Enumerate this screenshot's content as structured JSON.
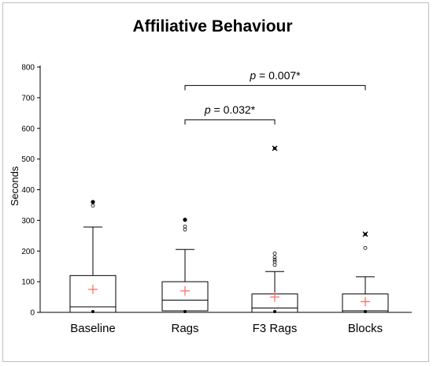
{
  "chart_data": {
    "type": "box",
    "title": "Affiliative Behaviour",
    "xlabel": "",
    "ylabel": "Seconds",
    "ylim": [
      0,
      800
    ],
    "yticks": [
      0,
      100,
      200,
      300,
      400,
      500,
      600,
      700,
      800
    ],
    "categories": [
      "Baseline",
      "Rags",
      "F3 Rags",
      "Blocks"
    ],
    "boxes": [
      {
        "min": 0,
        "q1": 0,
        "median": 18,
        "q3": 120,
        "max": 278,
        "mean": 75,
        "outliers": [
          348
        ],
        "extremes": [
          360
        ]
      },
      {
        "min": 0,
        "q1": 5,
        "median": 40,
        "q3": 100,
        "max": 205,
        "mean": 70,
        "outliers": [
          270,
          280
        ],
        "extremes": [
          302
        ]
      },
      {
        "min": 0,
        "q1": 0,
        "median": 14,
        "q3": 60,
        "max": 133,
        "mean": 50,
        "outliers": [
          155,
          165,
          172,
          180,
          192
        ],
        "extremes": [
          535
        ]
      },
      {
        "min": 0,
        "q1": 0,
        "median": 5,
        "q3": 60,
        "max": 116,
        "mean": 35,
        "outliers": [
          210
        ],
        "extremes": [
          255
        ]
      }
    ],
    "grid": false,
    "legend": "none",
    "annotations": [
      {
        "from": "Rags",
        "to": "F3 Rags",
        "level": 628,
        "p_label": "p",
        "value_text": " = 0.032*"
      },
      {
        "from": "Rags",
        "to": "Blocks",
        "level": 740,
        "p_label": "p",
        "value_text": " = 0.007*"
      }
    ],
    "colors": {
      "box": "#000000",
      "mean_marker": "#ff6f61",
      "outlier": "#000000"
    }
  }
}
